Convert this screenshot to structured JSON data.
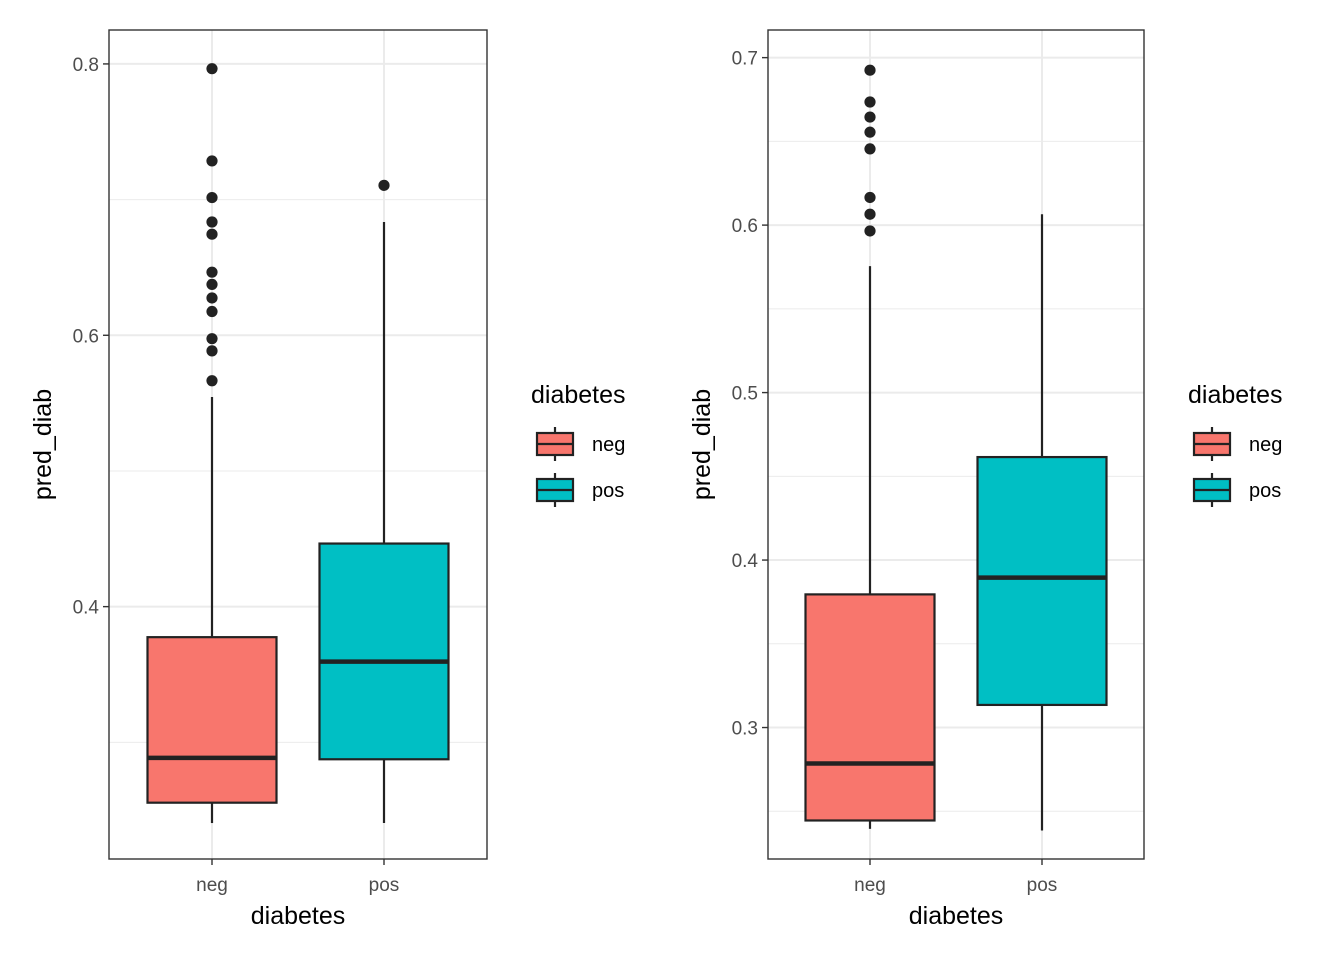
{
  "chart_data": [
    {
      "type": "box",
      "xlabel": "diabetes",
      "ylabel": "pred_diab",
      "categories": [
        "neg",
        "pos"
      ],
      "ylim": [
        0.214,
        0.825
      ],
      "y_ticks_major": [
        0.4,
        0.6,
        0.8
      ],
      "y_ticks_minor": [
        0.3,
        0.5,
        0.7
      ],
      "grid": true,
      "legend": {
        "title": "diabetes",
        "entries": [
          "neg",
          "pos"
        ],
        "position": "right"
      },
      "boxes": [
        {
          "category": "neg",
          "color": "#F8766D",
          "whisker_low": 0.2405,
          "q1": 0.2555,
          "median": 0.2885,
          "q3": 0.3775,
          "whisker_high": 0.5545,
          "outliers": [
            0.7965,
            0.7285,
            0.7015,
            0.6835,
            0.6745,
            0.6465,
            0.6375,
            0.6275,
            0.6175,
            0.5975,
            0.5885,
            0.5665
          ]
        },
        {
          "category": "pos",
          "color": "#00BFC4",
          "whisker_low": 0.2405,
          "q1": 0.2875,
          "median": 0.3595,
          "q3": 0.4465,
          "whisker_high": 0.6835,
          "outliers": [
            0.7105
          ]
        }
      ]
    },
    {
      "type": "box",
      "xlabel": "diabetes",
      "ylabel": "pred_diab",
      "categories": [
        "neg",
        "pos"
      ],
      "ylim": [
        0.2215,
        0.7165
      ],
      "y_ticks_major": [
        0.3,
        0.4,
        0.5,
        0.6,
        0.7
      ],
      "y_ticks_minor": [
        0.25,
        0.35,
        0.45,
        0.55,
        0.65
      ],
      "grid": true,
      "legend": {
        "title": "diabetes",
        "entries": [
          "neg",
          "pos"
        ],
        "position": "right"
      },
      "boxes": [
        {
          "category": "neg",
          "color": "#F8766D",
          "whisker_low": 0.2395,
          "q1": 0.2445,
          "median": 0.2785,
          "q3": 0.3795,
          "whisker_high": 0.5755,
          "outliers": [
            0.6925,
            0.6735,
            0.6645,
            0.6555,
            0.6455,
            0.6165,
            0.6065,
            0.5965
          ]
        },
        {
          "category": "pos",
          "color": "#00BFC4",
          "whisker_low": 0.2385,
          "q1": 0.3135,
          "median": 0.3895,
          "q3": 0.4615,
          "whisker_high": 0.6065,
          "outliers": []
        }
      ]
    }
  ]
}
